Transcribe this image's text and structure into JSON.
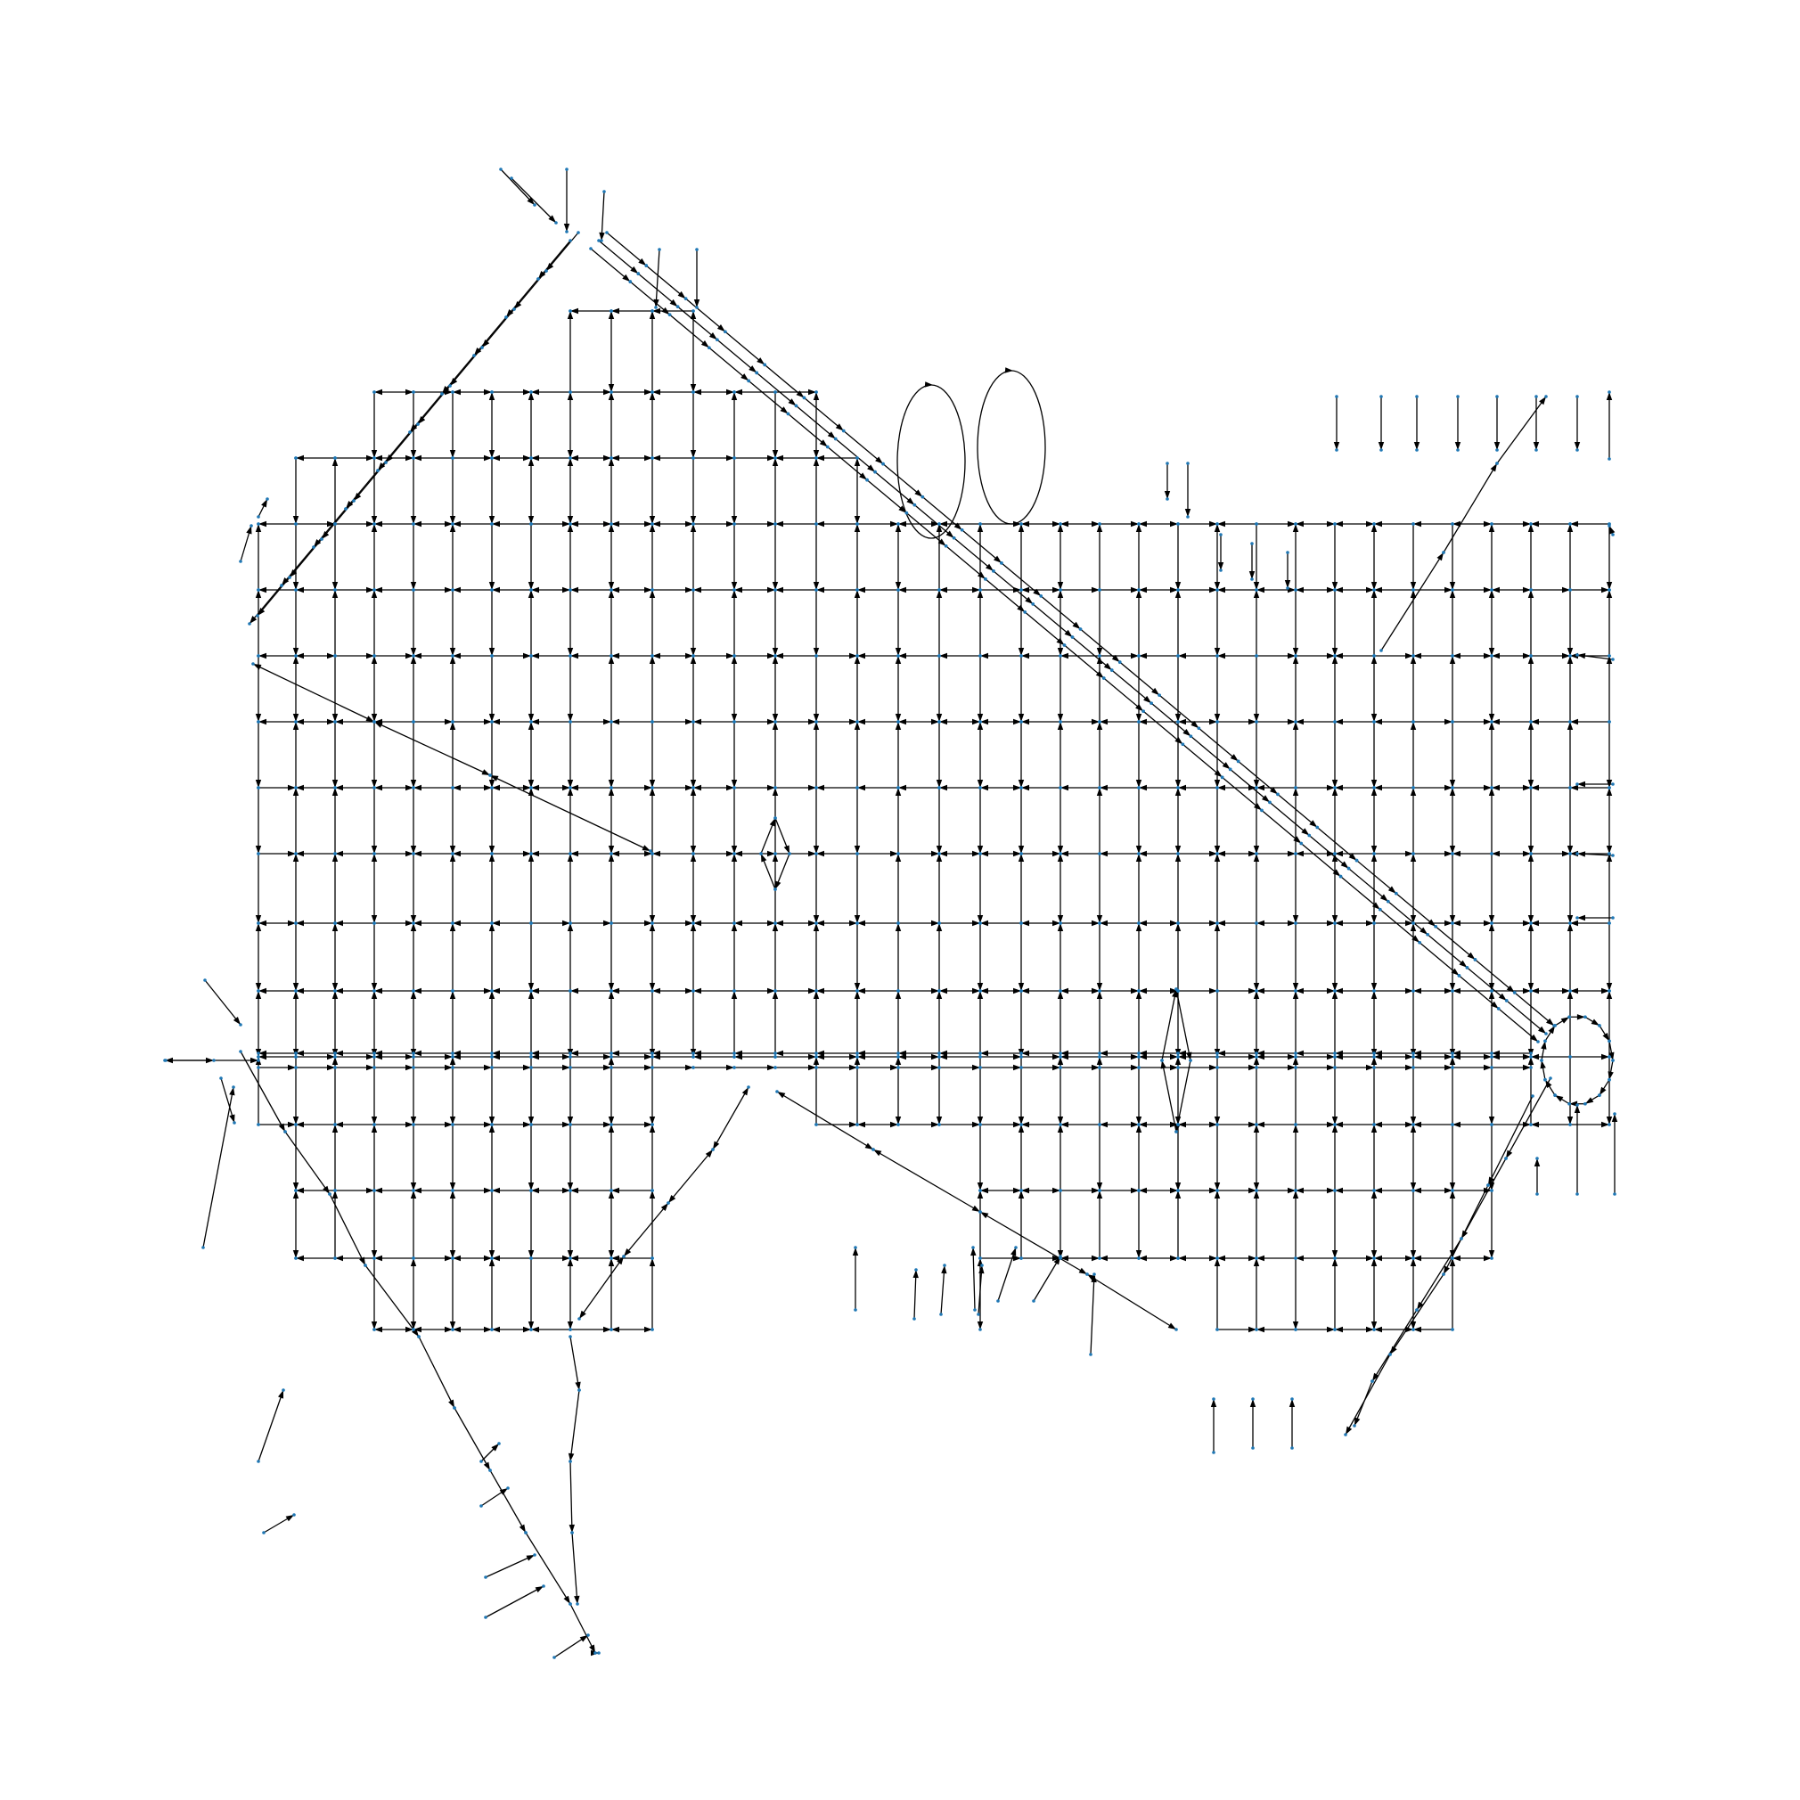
{
  "figure": {
    "kind": "directed road network graph",
    "background_color": "#ffffff",
    "edge_color": "#000000",
    "node_color": "#1f77b4",
    "arrowhead_color": "#000000",
    "edge_style": "straight directed edges with filled triangular arrowheads",
    "loop_edges": 2,
    "text_labels": []
  }
}
